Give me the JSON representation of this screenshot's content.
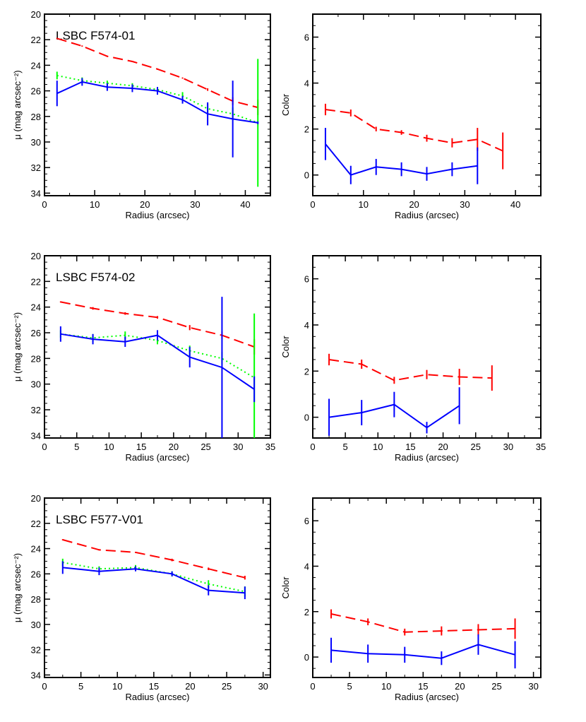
{
  "colors": {
    "red": "#ff0000",
    "green": "#00ff00",
    "blue": "#0000ff",
    "axes": "#000000"
  },
  "chart_data": [
    {
      "type": "line",
      "title": "LSBC F574-01",
      "xlabel": "Radius (arcsec)",
      "ylabel": "μ  (mag arcsec⁻²)",
      "xlim": [
        0,
        45
      ],
      "ylim": [
        34.2,
        20
      ],
      "xticks": [
        "0",
        "10",
        "20",
        "30",
        "40"
      ],
      "yticks": [
        "20",
        "22",
        "24",
        "26",
        "28",
        "30",
        "32",
        "34"
      ],
      "series": [
        {
          "color": "red",
          "dash": "long",
          "x": [
            2.5,
            7.5,
            12.5,
            17.5,
            22.5,
            27.5,
            32.5,
            37.5,
            42.5
          ],
          "y": [
            21.9,
            22.5,
            23.3,
            23.7,
            24.3,
            25.0,
            25.9,
            26.8,
            27.3
          ],
          "err": [
            0.05,
            0.05,
            0.05,
            0.05,
            0.05,
            0.05,
            0.1,
            0.3,
            0.6
          ]
        },
        {
          "color": "green",
          "dash": "dot",
          "x": [
            2.5,
            7.5,
            12.5,
            17.5,
            22.5,
            27.5,
            32.5,
            37.5,
            42.5
          ],
          "y": [
            24.8,
            25.2,
            25.4,
            25.6,
            25.9,
            26.4,
            27.4,
            27.8,
            28.5
          ],
          "err": [
            0.3,
            0.25,
            0.2,
            0.2,
            0.2,
            0.3,
            0.4,
            0.5,
            5.0
          ]
        },
        {
          "color": "blue",
          "dash": "solid",
          "x": [
            2.5,
            7.5,
            12.5,
            17.5,
            22.5,
            27.5,
            32.5,
            37.5,
            42.5
          ],
          "y": [
            26.2,
            25.3,
            25.7,
            25.8,
            26.0,
            26.7,
            27.8,
            28.2,
            28.5
          ],
          "err": [
            1.0,
            0.3,
            0.3,
            0.3,
            0.3,
            0.3,
            0.9,
            3.0,
            0.1
          ]
        }
      ]
    },
    {
      "type": "line",
      "title": "",
      "xlabel": "Radius (arcsec)",
      "ylabel": "Color",
      "xlim": [
        0,
        45
      ],
      "ylim": [
        -0.9,
        7
      ],
      "xticks": [
        "0",
        "10",
        "20",
        "30",
        "40"
      ],
      "yticks": [
        "0",
        "2",
        "4",
        "6"
      ],
      "series": [
        {
          "color": "red",
          "dash": "long",
          "x": [
            2.5,
            7.5,
            12.5,
            17.5,
            22.5,
            27.5,
            32.5,
            37.5
          ],
          "y": [
            2.85,
            2.7,
            2.0,
            1.85,
            1.6,
            1.4,
            1.55,
            1.05
          ],
          "err": [
            0.25,
            0.15,
            0.1,
            0.1,
            0.15,
            0.2,
            0.5,
            0.8
          ]
        },
        {
          "color": "blue",
          "dash": "solid",
          "x": [
            2.5,
            7.5,
            12.5,
            17.5,
            22.5,
            27.5,
            32.5
          ],
          "y": [
            1.35,
            0.0,
            0.35,
            0.25,
            0.05,
            0.25,
            0.4
          ],
          "err": [
            0.7,
            0.4,
            0.35,
            0.3,
            0.3,
            0.3,
            0.8
          ]
        }
      ]
    },
    {
      "type": "line",
      "title": "LSBC F574-02",
      "xlabel": "Radius (arcsec)",
      "ylabel": "μ  (mag arcsec⁻²)",
      "xlim": [
        0,
        35
      ],
      "ylim": [
        34.2,
        20
      ],
      "xticks": [
        "0",
        "5",
        "10",
        "15",
        "20",
        "25",
        "30",
        "35"
      ],
      "yticks": [
        "20",
        "22",
        "24",
        "26",
        "28",
        "30",
        "32",
        "34"
      ],
      "series": [
        {
          "color": "red",
          "dash": "long",
          "x": [
            2.5,
            7.5,
            12.5,
            17.5,
            22.5,
            27.5,
            32.5
          ],
          "y": [
            23.6,
            24.1,
            24.5,
            24.8,
            25.6,
            26.2,
            27.1
          ],
          "err": [
            0.05,
            0.1,
            0.1,
            0.1,
            0.2,
            0.3,
            0.6
          ]
        },
        {
          "color": "green",
          "dash": "dot",
          "x": [
            2.5,
            7.5,
            12.5,
            17.5,
            22.5,
            27.5,
            32.5
          ],
          "y": [
            26.1,
            26.4,
            26.2,
            26.6,
            27.4,
            28.0,
            29.5
          ],
          "err": [
            0.3,
            0.3,
            0.3,
            0.3,
            0.4,
            0.5,
            5.0
          ]
        },
        {
          "color": "blue",
          "dash": "solid",
          "x": [
            2.5,
            7.5,
            12.5,
            17.5,
            22.5,
            27.5,
            32.5
          ],
          "y": [
            26.1,
            26.5,
            26.7,
            26.2,
            27.9,
            28.7,
            30.4
          ],
          "err": [
            0.6,
            0.4,
            0.4,
            0.4,
            0.8,
            5.5,
            1.0
          ]
        }
      ]
    },
    {
      "type": "line",
      "title": "",
      "xlabel": "Radius (arcsec)",
      "ylabel": "Color",
      "xlim": [
        0,
        35
      ],
      "ylim": [
        -0.9,
        7
      ],
      "xticks": [
        "0",
        "5",
        "10",
        "15",
        "20",
        "25",
        "30",
        "35"
      ],
      "yticks": [
        "0",
        "2",
        "4",
        "6"
      ],
      "series": [
        {
          "color": "red",
          "dash": "long",
          "x": [
            2.5,
            7.5,
            12.5,
            17.5,
            22.5,
            27.5
          ],
          "y": [
            2.5,
            2.3,
            1.6,
            1.85,
            1.75,
            1.7
          ],
          "err": [
            0.25,
            0.2,
            0.15,
            0.2,
            0.35,
            0.55
          ]
        },
        {
          "color": "blue",
          "dash": "solid",
          "x": [
            2.5,
            7.5,
            12.5,
            17.5,
            22.5
          ],
          "y": [
            0.0,
            0.2,
            0.55,
            -0.45,
            0.5
          ],
          "err": [
            0.8,
            0.55,
            0.55,
            0.25,
            0.8
          ]
        }
      ]
    },
    {
      "type": "line",
      "title": "LSBC F577-V01",
      "xlabel": "Radius (arcsec)",
      "ylabel": "μ  (mag arcsec⁻²)",
      "xlim": [
        0,
        31
      ],
      "ylim": [
        34.2,
        20
      ],
      "xticks": [
        "0",
        "5",
        "10",
        "15",
        "20",
        "25",
        "30"
      ],
      "yticks": [
        "20",
        "22",
        "24",
        "26",
        "28",
        "30",
        "32",
        "34"
      ],
      "series": [
        {
          "color": "red",
          "dash": "long",
          "x": [
            2.5,
            7.5,
            12.5,
            17.5,
            22.5,
            27.5
          ],
          "y": [
            23.3,
            24.1,
            24.3,
            24.9,
            25.6,
            26.3
          ],
          "err": [
            0.05,
            0.05,
            0.05,
            0.1,
            0.1,
            0.15
          ]
        },
        {
          "color": "green",
          "dash": "dot",
          "x": [
            2.5,
            7.5,
            12.5,
            17.5,
            22.5,
            27.5
          ],
          "y": [
            25.1,
            25.6,
            25.5,
            26.0,
            26.8,
            27.4
          ],
          "err": [
            0.3,
            0.2,
            0.2,
            0.2,
            0.3,
            0.4
          ]
        },
        {
          "color": "blue",
          "dash": "solid",
          "x": [
            2.5,
            7.5,
            12.5,
            17.5,
            22.5,
            27.5
          ],
          "y": [
            25.5,
            25.8,
            25.6,
            26.0,
            27.3,
            27.5
          ],
          "err": [
            0.5,
            0.3,
            0.2,
            0.2,
            0.4,
            0.5
          ]
        }
      ]
    },
    {
      "type": "line",
      "title": "",
      "xlabel": "Radius (arcsec)",
      "ylabel": "Color",
      "xlim": [
        0,
        31
      ],
      "ylim": [
        -0.9,
        7
      ],
      "xticks": [
        "0",
        "5",
        "10",
        "15",
        "20",
        "25",
        "30"
      ],
      "yticks": [
        "0",
        "2",
        "4",
        "6"
      ],
      "series": [
        {
          "color": "red",
          "dash": "long",
          "x": [
            2.5,
            7.5,
            12.5,
            17.5,
            22.5,
            27.5
          ],
          "y": [
            1.9,
            1.55,
            1.1,
            1.15,
            1.2,
            1.25
          ],
          "err": [
            0.2,
            0.15,
            0.15,
            0.2,
            0.25,
            0.45
          ]
        },
        {
          "color": "blue",
          "dash": "solid",
          "x": [
            2.5,
            7.5,
            12.5,
            17.5,
            22.5,
            27.5
          ],
          "y": [
            0.3,
            0.15,
            0.1,
            -0.05,
            0.55,
            0.1
          ],
          "err": [
            0.55,
            0.4,
            0.35,
            0.3,
            0.45,
            0.6
          ]
        }
      ]
    }
  ]
}
